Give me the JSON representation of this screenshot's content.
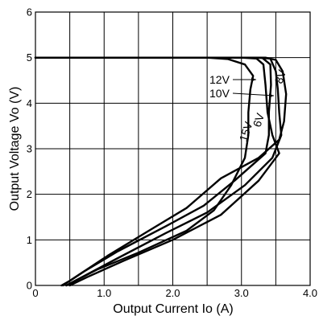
{
  "chart_data": {
    "type": "line",
    "title": "",
    "xlabel": "Output Current Io (A)",
    "ylabel": "Output Voltage Vo (V)",
    "xlim": [
      0,
      4.0
    ],
    "ylim": [
      0,
      6
    ],
    "x_ticks": [
      0,
      1.0,
      2.0,
      3.0,
      4.0
    ],
    "x_tick_labels": [
      "0",
      "1.0",
      "2.0",
      "3.0",
      "4.0"
    ],
    "y_ticks": [
      0,
      1,
      2,
      3,
      4,
      5,
      6
    ],
    "y_tick_labels": [
      "0",
      "1",
      "2",
      "3",
      "4",
      "5",
      "6"
    ],
    "grid": true,
    "grid_x_step": 0.5,
    "grid_y_step": 1,
    "line_color": "#000000",
    "series": [
      {
        "name": "15V",
        "points": [
          [
            0,
            5.0
          ],
          [
            2.5,
            5.0
          ],
          [
            2.8,
            4.97
          ],
          [
            3.05,
            4.85
          ],
          [
            3.17,
            4.6
          ],
          [
            3.13,
            4.3
          ],
          [
            3.1,
            3.8
          ],
          [
            3.1,
            3.3
          ],
          [
            3.05,
            2.8
          ],
          [
            2.85,
            2.2
          ],
          [
            2.6,
            1.65
          ],
          [
            2.2,
            1.2
          ],
          [
            1.5,
            0.72
          ],
          [
            0.9,
            0.35
          ],
          [
            0.55,
            0.08
          ],
          [
            0.45,
            0.0
          ]
        ]
      },
      {
        "name": "12V",
        "points": [
          [
            0,
            5.0
          ],
          [
            3.0,
            5.0
          ],
          [
            3.22,
            4.98
          ],
          [
            3.32,
            4.85
          ],
          [
            3.35,
            4.4
          ],
          [
            3.38,
            3.8
          ],
          [
            3.45,
            3.3
          ],
          [
            3.55,
            2.9
          ],
          [
            3.25,
            2.3
          ],
          [
            2.7,
            1.55
          ],
          [
            2.0,
            1.0
          ],
          [
            1.3,
            0.55
          ],
          [
            0.75,
            0.18
          ],
          [
            0.5,
            0.0
          ]
        ]
      },
      {
        "name": "10V",
        "points": [
          [
            0,
            5.0
          ],
          [
            3.2,
            5.0
          ],
          [
            3.42,
            4.98
          ],
          [
            3.5,
            4.7
          ],
          [
            3.53,
            4.3
          ],
          [
            3.55,
            3.8
          ],
          [
            3.58,
            3.3
          ],
          [
            3.45,
            2.8
          ],
          [
            3.05,
            2.2
          ],
          [
            2.5,
            1.6
          ],
          [
            1.9,
            1.15
          ],
          [
            1.2,
            0.6
          ],
          [
            0.6,
            0.12
          ],
          [
            0.45,
            0.0
          ]
        ]
      },
      {
        "name": "6V",
        "points": [
          [
            0,
            5.0
          ],
          [
            3.3,
            5.0
          ],
          [
            3.42,
            4.85
          ],
          [
            3.43,
            4.4
          ],
          [
            3.4,
            3.8
          ],
          [
            3.4,
            3.3
          ],
          [
            3.35,
            2.9
          ],
          [
            2.9,
            2.3
          ],
          [
            2.45,
            1.75
          ],
          [
            1.9,
            1.3
          ],
          [
            1.2,
            0.75
          ],
          [
            0.7,
            0.3
          ],
          [
            0.4,
            0.0
          ]
        ]
      },
      {
        "name": "8V",
        "points": [
          [
            0,
            5.0
          ],
          [
            3.35,
            5.0
          ],
          [
            3.5,
            4.95
          ],
          [
            3.6,
            4.7
          ],
          [
            3.65,
            4.2
          ],
          [
            3.62,
            3.6
          ],
          [
            3.55,
            3.2
          ],
          [
            3.25,
            2.8
          ],
          [
            2.7,
            2.35
          ],
          [
            2.2,
            1.7
          ],
          [
            1.65,
            1.2
          ],
          [
            1.05,
            0.65
          ],
          [
            0.5,
            0.1
          ],
          [
            0.38,
            0.0
          ]
        ]
      }
    ],
    "annotations": [
      {
        "text": "12V",
        "series": "12V"
      },
      {
        "text": "10V",
        "series": "10V"
      },
      {
        "text": "15V",
        "series": "15V"
      },
      {
        "text": "6V",
        "series": "6V"
      },
      {
        "text": "8V",
        "series": "8V"
      }
    ]
  }
}
